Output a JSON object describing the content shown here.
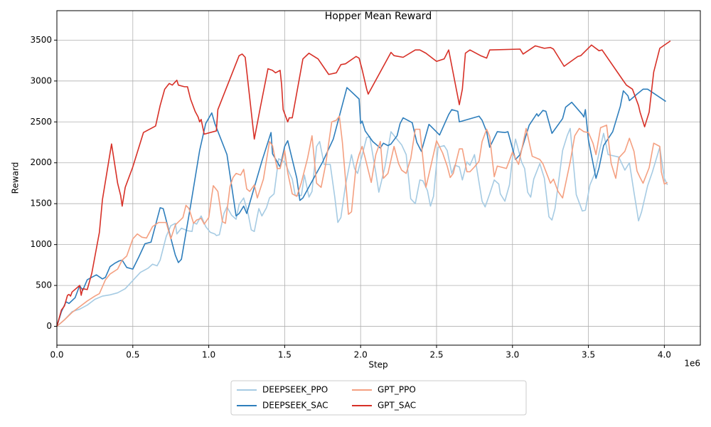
{
  "chart_data": {
    "type": "line",
    "title": "Hopper Mean Reward",
    "x_label": "Step",
    "y_label": "Reward",
    "x_offset_label": "1e6",
    "xlim": [
      0,
      4237000
    ],
    "ylim": [
      -230,
      3860
    ],
    "xticks": [
      {
        "value": 0,
        "label": "0.0"
      },
      {
        "value": 500000,
        "label": "0.5"
      },
      {
        "value": 1000000,
        "label": "1.0"
      },
      {
        "value": 1500000,
        "label": "1.5"
      },
      {
        "value": 2000000,
        "label": "2.0"
      },
      {
        "value": 2500000,
        "label": "2.5"
      },
      {
        "value": 3000000,
        "label": "3.0"
      },
      {
        "value": 3500000,
        "label": "3.5"
      },
      {
        "value": 4000000,
        "label": "4.0"
      }
    ],
    "yticks": [
      0,
      500,
      1000,
      1500,
      2000,
      2500,
      3000,
      3500
    ],
    "grid": true,
    "legend": "below",
    "series": [
      {
        "name": "DEEPSEEK_PPO",
        "color": "#a6cbe3",
        "x": [
          0,
          50000,
          100000,
          150000,
          200000,
          250000,
          300000,
          350000,
          400000,
          450000,
          500000,
          550000,
          600000,
          630000,
          660000,
          680000,
          720000,
          750000,
          780000,
          790000,
          820000,
          860000,
          890000,
          900000,
          920000,
          950000,
          980000,
          1010000,
          1040000,
          1050000,
          1070000,
          1100000,
          1120000,
          1150000,
          1180000,
          1200000,
          1230000,
          1260000,
          1280000,
          1300000,
          1320000,
          1330000,
          1350000,
          1380000,
          1400000,
          1430000,
          1460000,
          1500000,
          1530000,
          1550000,
          1570000,
          1610000,
          1630000,
          1660000,
          1680000,
          1710000,
          1730000,
          1760000,
          1800000,
          1830000,
          1850000,
          1870000,
          1900000,
          1940000,
          1960000,
          1980000,
          2000000,
          2040000,
          2060000,
          2100000,
          2120000,
          2160000,
          2200000,
          2230000,
          2270000,
          2300000,
          2330000,
          2360000,
          2390000,
          2410000,
          2440000,
          2460000,
          2480000,
          2510000,
          2550000,
          2570000,
          2600000,
          2620000,
          2650000,
          2670000,
          2700000,
          2720000,
          2750000,
          2800000,
          2820000,
          2850000,
          2880000,
          2910000,
          2920000,
          2950000,
          2980000,
          3000000,
          3020000,
          3060000,
          3080000,
          3100000,
          3120000,
          3140000,
          3180000,
          3210000,
          3240000,
          3260000,
          3280000,
          3310000,
          3330000,
          3360000,
          3380000,
          3420000,
          3460000,
          3480000,
          3510000,
          3540000,
          3570000,
          3600000,
          3630000,
          3700000,
          3740000,
          3770000,
          3800000,
          3820000,
          3830000,
          3850000,
          3890000,
          3920000,
          3970000,
          4000000,
          4020000
        ],
        "values": [
          0,
          80,
          180,
          210,
          260,
          330,
          370,
          385,
          410,
          460,
          560,
          660,
          710,
          760,
          740,
          810,
          1100,
          1230,
          1260,
          1130,
          1200,
          1170,
          1160,
          1270,
          1250,
          1350,
          1220,
          1150,
          1130,
          1110,
          1120,
          1380,
          1460,
          1360,
          1310,
          1490,
          1570,
          1370,
          1180,
          1160,
          1350,
          1440,
          1350,
          1450,
          1570,
          1620,
          2050,
          2010,
          1880,
          1800,
          1600,
          1600,
          1850,
          1580,
          1650,
          2200,
          2260,
          1980,
          1980,
          1580,
          1270,
          1330,
          1720,
          2100,
          1930,
          1870,
          2020,
          2310,
          2320,
          1880,
          1640,
          1950,
          2380,
          2310,
          2220,
          2100,
          1560,
          1500,
          1790,
          1780,
          1660,
          1470,
          1590,
          2190,
          2210,
          2150,
          1870,
          1970,
          1950,
          1790,
          2010,
          1970,
          2100,
          1530,
          1460,
          1620,
          1790,
          1740,
          1620,
          1530,
          1730,
          2060,
          2290,
          2010,
          1930,
          1640,
          1580,
          1800,
          1990,
          1810,
          1340,
          1300,
          1440,
          1860,
          2150,
          2330,
          2420,
          1610,
          1410,
          1420,
          1730,
          1860,
          2120,
          2360,
          2100,
          2070,
          1910,
          2000,
          1640,
          1410,
          1290,
          1400,
          1720,
          1880,
          2190,
          1810,
          1730
        ]
      },
      {
        "name": "DEEPSEEK_SAC",
        "color": "#2e7ebc",
        "x": [
          0,
          30000,
          60000,
          80000,
          120000,
          150000,
          170000,
          200000,
          260000,
          300000,
          320000,
          350000,
          380000,
          410000,
          430000,
          460000,
          500000,
          540000,
          580000,
          620000,
          680000,
          700000,
          760000,
          780000,
          800000,
          820000,
          880000,
          940000,
          980000,
          1020000,
          1040000,
          1120000,
          1140000,
          1180000,
          1200000,
          1230000,
          1250000,
          1350000,
          1410000,
          1420000,
          1470000,
          1500000,
          1520000,
          1580000,
          1600000,
          1620000,
          1750000,
          1820000,
          1910000,
          1990000,
          2000000,
          2010000,
          2030000,
          2080000,
          2130000,
          2150000,
          2180000,
          2200000,
          2240000,
          2260000,
          2280000,
          2340000,
          2370000,
          2400000,
          2450000,
          2520000,
          2580000,
          2600000,
          2640000,
          2650000,
          2780000,
          2800000,
          2830000,
          2850000,
          2900000,
          2950000,
          2970000,
          3020000,
          3050000,
          3110000,
          3160000,
          3170000,
          3200000,
          3220000,
          3260000,
          3330000,
          3350000,
          3390000,
          3460000,
          3470000,
          3480000,
          3500000,
          3550000,
          3570000,
          3600000,
          3660000,
          3710000,
          3730000,
          3760000,
          3770000,
          3820000,
          3860000,
          3890000,
          4010000
        ],
        "values": [
          0,
          180,
          300,
          280,
          350,
          500,
          440,
          570,
          630,
          580,
          600,
          730,
          770,
          800,
          810,
          720,
          700,
          850,
          1010,
          1030,
          1450,
          1440,
          1010,
          870,
          780,
          820,
          1470,
          2150,
          2480,
          2610,
          2480,
          2100,
          1850,
          1350,
          1380,
          1470,
          1380,
          2020,
          2370,
          2110,
          1950,
          2200,
          2270,
          1810,
          1540,
          1570,
          2010,
          2290,
          2920,
          2780,
          2480,
          2510,
          2390,
          2260,
          2180,
          2240,
          2210,
          2230,
          2330,
          2480,
          2550,
          2490,
          2250,
          2140,
          2470,
          2340,
          2590,
          2650,
          2630,
          2500,
          2570,
          2520,
          2380,
          2190,
          2380,
          2370,
          2380,
          2040,
          2100,
          2460,
          2600,
          2570,
          2640,
          2630,
          2360,
          2540,
          2680,
          2740,
          2590,
          2560,
          2650,
          2280,
          1810,
          1940,
          2210,
          2380,
          2690,
          2880,
          2820,
          2760,
          2840,
          2900,
          2900,
          2750
        ]
      },
      {
        "name": "GPT_PPO",
        "color": "#f4a081",
        "x": [
          0,
          50000,
          100000,
          150000,
          200000,
          250000,
          280000,
          320000,
          350000,
          400000,
          430000,
          460000,
          500000,
          530000,
          560000,
          590000,
          630000,
          670000,
          720000,
          750000,
          780000,
          830000,
          850000,
          870000,
          900000,
          920000,
          950000,
          970000,
          1000000,
          1020000,
          1030000,
          1060000,
          1090000,
          1110000,
          1140000,
          1160000,
          1180000,
          1210000,
          1230000,
          1250000,
          1270000,
          1300000,
          1320000,
          1360000,
          1400000,
          1420000,
          1450000,
          1470000,
          1500000,
          1520000,
          1550000,
          1580000,
          1610000,
          1650000,
          1680000,
          1710000,
          1740000,
          1770000,
          1810000,
          1840000,
          1860000,
          1880000,
          1920000,
          1940000,
          1970000,
          1990000,
          2010000,
          2030000,
          2070000,
          2100000,
          2130000,
          2150000,
          2180000,
          2220000,
          2250000,
          2270000,
          2300000,
          2330000,
          2360000,
          2390000,
          2430000,
          2460000,
          2500000,
          2540000,
          2570000,
          2590000,
          2610000,
          2650000,
          2670000,
          2700000,
          2720000,
          2750000,
          2780000,
          2800000,
          2830000,
          2850000,
          2880000,
          2900000,
          2960000,
          3000000,
          3040000,
          3090000,
          3130000,
          3180000,
          3200000,
          3250000,
          3270000,
          3300000,
          3330000,
          3380000,
          3410000,
          3440000,
          3470000,
          3500000,
          3530000,
          3550000,
          3580000,
          3620000,
          3650000,
          3680000,
          3700000,
          3740000,
          3770000,
          3800000,
          3820000,
          3840000,
          3860000,
          3900000,
          3930000,
          3970000,
          3980000,
          4000000,
          4020000
        ],
        "values": [
          0,
          80,
          170,
          240,
          310,
          370,
          400,
          570,
          640,
          700,
          810,
          860,
          1070,
          1130,
          1090,
          1080,
          1220,
          1270,
          1270,
          1070,
          1240,
          1330,
          1480,
          1440,
          1260,
          1300,
          1320,
          1250,
          1330,
          1600,
          1720,
          1650,
          1280,
          1260,
          1710,
          1820,
          1870,
          1850,
          1920,
          1680,
          1650,
          1730,
          1570,
          1800,
          2260,
          2210,
          1930,
          1930,
          2150,
          1880,
          1620,
          1590,
          1760,
          2050,
          2330,
          1750,
          1700,
          1980,
          2500,
          2520,
          2570,
          2250,
          1370,
          1400,
          1960,
          2100,
          2200,
          2060,
          1760,
          2100,
          2260,
          1810,
          1870,
          2200,
          1990,
          1910,
          1870,
          2050,
          2410,
          2410,
          1700,
          1940,
          2270,
          2120,
          1960,
          1820,
          1870,
          2170,
          2170,
          1890,
          1890,
          1950,
          2020,
          2260,
          2410,
          2320,
          1830,
          1960,
          1930,
          2130,
          1980,
          2420,
          2080,
          2040,
          1990,
          1750,
          1800,
          1650,
          1570,
          2010,
          2330,
          2420,
          2380,
          2370,
          2240,
          2100,
          2430,
          2460,
          1990,
          1810,
          2060,
          2140,
          2300,
          2140,
          1900,
          1820,
          1750,
          1940,
          2240,
          2200,
          1890,
          1740,
          1760
        ]
      },
      {
        "name": "GPT_SAC",
        "color": "#d73027",
        "x": [
          0,
          30000,
          50000,
          70000,
          80000,
          90000,
          100000,
          150000,
          160000,
          170000,
          200000,
          230000,
          270000,
          280000,
          300000,
          360000,
          400000,
          420000,
          430000,
          450000,
          500000,
          570000,
          650000,
          680000,
          710000,
          740000,
          760000,
          790000,
          800000,
          840000,
          860000,
          880000,
          910000,
          930000,
          940000,
          950000,
          970000,
          1050000,
          1060000,
          1200000,
          1220000,
          1240000,
          1300000,
          1340000,
          1390000,
          1420000,
          1440000,
          1470000,
          1480000,
          1490000,
          1520000,
          1530000,
          1550000,
          1620000,
          1660000,
          1720000,
          1790000,
          1840000,
          1870000,
          1900000,
          1970000,
          1990000,
          2010000,
          2040000,
          2050000,
          2200000,
          2220000,
          2280000,
          2360000,
          2390000,
          2430000,
          2500000,
          2550000,
          2580000,
          2650000,
          2670000,
          2690000,
          2720000,
          2790000,
          2830000,
          2850000,
          3050000,
          3070000,
          3150000,
          3210000,
          3250000,
          3270000,
          3340000,
          3430000,
          3450000,
          3520000,
          3570000,
          3590000,
          3720000,
          3750000,
          3790000,
          3830000,
          3840000,
          3870000,
          3900000,
          3930000,
          3970000,
          4040000
        ],
        "values": [
          0,
          200,
          250,
          380,
          390,
          370,
          420,
          500,
          380,
          460,
          450,
          650,
          1050,
          1150,
          1550,
          2230,
          1750,
          1600,
          1470,
          1700,
          1950,
          2370,
          2450,
          2700,
          2900,
          2970,
          2950,
          3010,
          2950,
          2930,
          2930,
          2780,
          2630,
          2560,
          2500,
          2530,
          2350,
          2390,
          2650,
          3310,
          3330,
          3290,
          2290,
          2680,
          3150,
          3130,
          3100,
          3130,
          2950,
          2650,
          2500,
          2550,
          2550,
          3270,
          3340,
          3270,
          3080,
          3100,
          3200,
          3210,
          3300,
          3280,
          3140,
          2900,
          2840,
          3350,
          3310,
          3290,
          3380,
          3380,
          3340,
          3240,
          3270,
          3380,
          2710,
          2900,
          3340,
          3380,
          3310,
          3280,
          3380,
          3390,
          3330,
          3430,
          3400,
          3410,
          3390,
          3180,
          3300,
          3310,
          3440,
          3370,
          3380,
          3030,
          2950,
          2900,
          2700,
          2620,
          2440,
          2620,
          3110,
          3400,
          3490
        ]
      }
    ]
  }
}
